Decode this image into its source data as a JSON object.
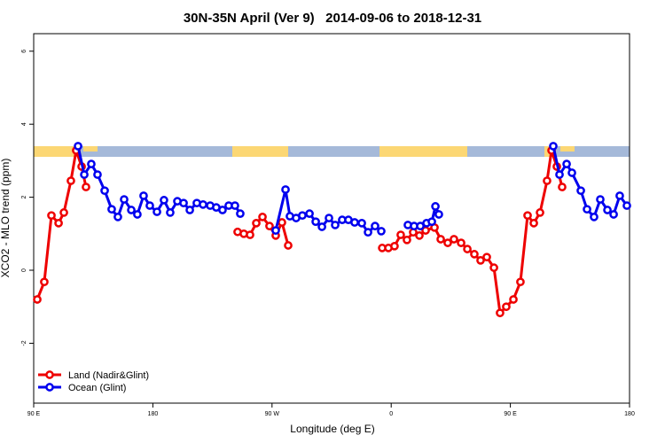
{
  "chart_data": {
    "type": "line",
    "title": "30N-35N April (Ver 9)   2014-09-06 to 2018-12-31",
    "x_label": "Longitude (deg E)",
    "y_label": "XCO2 - MLO trend (ppm)",
    "xlim": [
      90,
      540
    ],
    "ylim": [
      -3.64,
      6.48
    ],
    "xticks": [
      {
        "value": 90,
        "label": "90 E"
      },
      180,
      {
        "value": 270,
        "label": "90 W"
      },
      {
        "value": 360,
        "label": "0"
      },
      {
        "value": 450,
        "label": "90 E"
      },
      {
        "value": 540,
        "label": "180"
      }
    ],
    "yticks": [
      -2,
      0,
      2,
      4,
      6
    ],
    "legend": "bottom-left",
    "series": [
      {
        "name": "Land (Nadir&Glint)",
        "color": "#ee0000",
        "x": [
          92.7,
          98.0,
          103.4,
          108.8,
          112.8,
          118.1,
          122.1,
          126.2,
          129.5,
          200,
          244.0,
          248.7,
          253.4,
          258.1,
          262.8,
          268.1,
          272.8,
          277.5,
          282.2,
          320,
          353.2,
          357.9,
          362.5,
          367.2,
          371.9,
          376.6,
          381.3,
          386.0,
          392.7,
          397.4,
          402.7,
          407.4,
          412.8,
          417.5,
          422.8,
          427.5,
          432.2,
          437.6,
          442.2,
          446.9,
          452.3,
          457.6,
          463.0,
          467.7,
          472.4,
          477.7,
          481.1,
          485.1,
          489.1
        ],
        "values": [
          -0.8,
          -0.32,
          1.5,
          1.29,
          1.58,
          2.45,
          3.28,
          2.84,
          2.28,
          null,
          1.05,
          1.0,
          0.97,
          1.29,
          1.46,
          1.21,
          0.95,
          1.31,
          0.68,
          null,
          0.61,
          0.61,
          0.66,
          0.97,
          0.83,
          1.04,
          0.95,
          1.09,
          1.17,
          0.85,
          0.75,
          0.85,
          0.75,
          0.58,
          0.44,
          0.27,
          0.36,
          0.07,
          -1.17,
          -1.0,
          -0.8,
          -0.32,
          1.5,
          1.29,
          1.58,
          2.45,
          3.28,
          2.84,
          2.28
        ]
      },
      {
        "name": "Ocean (Glint)",
        "color": "#0000ee",
        "x": [
          123.5,
          128.2,
          133.5,
          138.2,
          143.6,
          148.9,
          153.6,
          158.3,
          163.7,
          168.3,
          173.0,
          177.7,
          183.1,
          188.4,
          193.1,
          198.5,
          203.2,
          207.9,
          213.2,
          217.9,
          223.3,
          227.9,
          232.6,
          237.3,
          242.0,
          246.0,
          260,
          272.8,
          280.2,
          283.5,
          288.2,
          292.9,
          298.3,
          303.0,
          307.7,
          313.0,
          317.7,
          323.0,
          327.7,
          332.4,
          337.8,
          342.5,
          347.8,
          352.5,
          360,
          372.6,
          377.3,
          382.0,
          386.7,
          390.7,
          393.4,
          396.0,
          450,
          482.4,
          487.1,
          492.5,
          496.5,
          503.2,
          507.9,
          513.2,
          517.9,
          523.3,
          528.0,
          532.6,
          538.0
        ],
        "values": [
          3.4,
          2.62,
          2.91,
          2.62,
          2.18,
          1.67,
          1.46,
          1.94,
          1.65,
          1.53,
          2.04,
          1.77,
          1.6,
          1.92,
          1.58,
          1.89,
          1.84,
          1.65,
          1.84,
          1.8,
          1.77,
          1.72,
          1.65,
          1.77,
          1.77,
          1.55,
          null,
          1.09,
          2.21,
          1.48,
          1.43,
          1.5,
          1.55,
          1.33,
          1.19,
          1.43,
          1.24,
          1.38,
          1.38,
          1.31,
          1.29,
          1.04,
          1.21,
          1.07,
          null,
          1.24,
          1.21,
          1.21,
          1.29,
          1.33,
          1.75,
          1.53,
          null,
          3.4,
          2.62,
          2.91,
          2.67,
          2.18,
          1.67,
          1.46,
          1.94,
          1.65,
          1.53,
          2.04,
          1.77
        ]
      }
    ]
  }
}
